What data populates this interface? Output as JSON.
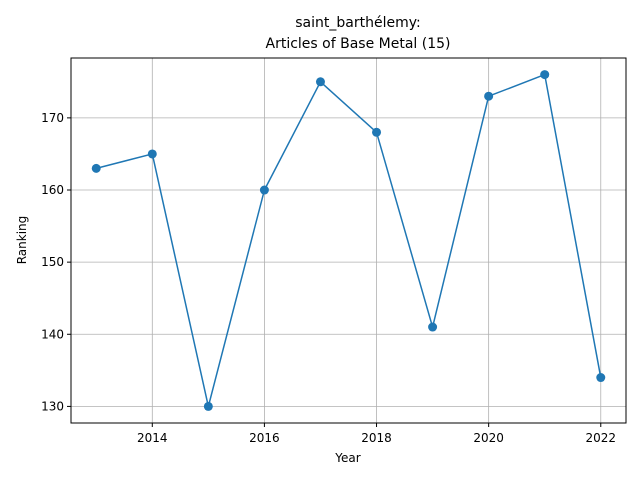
{
  "chart_data": {
    "type": "line",
    "title": "saint_barthélemy:",
    "subtitle": "Articles of Base Metal (15)",
    "xlabel": "Year",
    "ylabel": "Ranking",
    "x": [
      2013,
      2014,
      2015,
      2016,
      2017,
      2018,
      2019,
      2020,
      2021,
      2022
    ],
    "series": [
      {
        "values": [
          163,
          165,
          130,
          160,
          175,
          168,
          141,
          173,
          176,
          134
        ]
      }
    ],
    "xlim": [
      2012.55,
      2022.45
    ],
    "ylim": [
      127.7,
      178.3
    ],
    "xticks": [
      2014,
      2016,
      2018,
      2020,
      2022
    ],
    "yticks": [
      130,
      140,
      150,
      160,
      170
    ],
    "grid": true,
    "line_color": "#1f77b4"
  }
}
